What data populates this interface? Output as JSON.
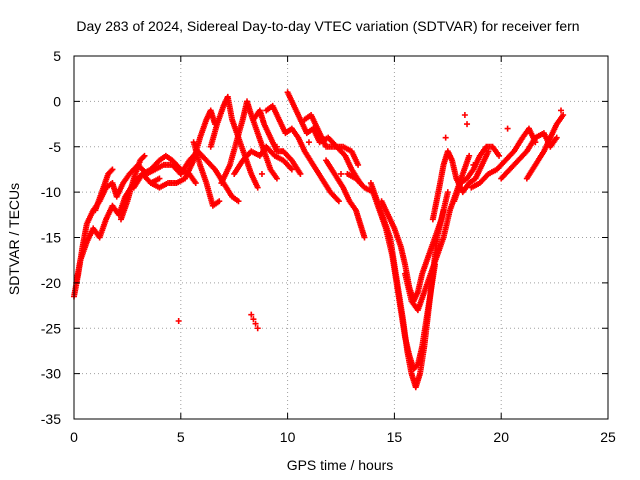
{
  "chart_data": {
    "type": "scatter",
    "title": "Day 283 of 2024, Sidereal Day-to-day VTEC variation (SDTVAR) for receiver fern",
    "xlabel": "GPS time / hours",
    "ylabel": "SDTVAR / TECUs",
    "xlim": [
      0,
      25
    ],
    "ylim": [
      -35,
      5
    ],
    "x_ticks": [
      0,
      5,
      10,
      15,
      20,
      25
    ],
    "y_ticks": [
      5,
      0,
      -5,
      -10,
      -15,
      -20,
      -25,
      -30,
      -35
    ],
    "grid": true,
    "marker": "+",
    "series_color": "#ff0000",
    "tracks": [
      {
        "name": "t1",
        "points": [
          [
            0.0,
            -21.5
          ],
          [
            0.2,
            -19
          ],
          [
            0.4,
            -16
          ],
          [
            0.6,
            -13.5
          ],
          [
            0.9,
            -12
          ],
          [
            1.2,
            -11
          ],
          [
            1.5,
            -9.5
          ],
          [
            1.8,
            -9
          ],
          [
            2.0,
            -10.5
          ],
          [
            2.3,
            -9
          ],
          [
            2.6,
            -8
          ],
          [
            3.0,
            -7
          ],
          [
            3.4,
            -8
          ],
          [
            3.8,
            -7.5
          ],
          [
            4.2,
            -7
          ],
          [
            4.6,
            -7
          ],
          [
            5.0,
            -8
          ]
        ]
      },
      {
        "name": "t2",
        "points": [
          [
            0.1,
            -20
          ],
          [
            0.3,
            -17.5
          ],
          [
            0.6,
            -15.5
          ],
          [
            0.9,
            -14
          ],
          [
            1.2,
            -15
          ],
          [
            1.5,
            -13
          ],
          [
            1.8,
            -11.5
          ],
          [
            2.1,
            -12.5
          ],
          [
            2.4,
            -10.5
          ],
          [
            2.8,
            -9
          ],
          [
            3.2,
            -8
          ],
          [
            3.6,
            -9
          ],
          [
            4.0,
            -8.5
          ]
        ]
      },
      {
        "name": "t3",
        "points": [
          [
            1.0,
            -12
          ],
          [
            1.3,
            -10
          ],
          [
            1.6,
            -8
          ],
          [
            1.8,
            -7.5
          ]
        ]
      },
      {
        "name": "t4",
        "points": [
          [
            2.2,
            -13
          ],
          [
            2.5,
            -11
          ],
          [
            2.8,
            -8.5
          ],
          [
            3.1,
            -6.5
          ],
          [
            3.3,
            -6
          ]
        ]
      },
      {
        "name": "t5",
        "points": [
          [
            2.8,
            -9.5
          ],
          [
            3.2,
            -8
          ],
          [
            3.6,
            -7.5
          ],
          [
            4.0,
            -6.5
          ],
          [
            4.3,
            -6
          ],
          [
            4.6,
            -6.5
          ],
          [
            5.0,
            -7.5
          ],
          [
            5.4,
            -8
          ],
          [
            5.7,
            -9
          ]
        ]
      },
      {
        "name": "t6",
        "points": [
          [
            3.6,
            -9
          ],
          [
            4.0,
            -9.5
          ],
          [
            4.4,
            -9
          ],
          [
            4.8,
            -9
          ],
          [
            5.2,
            -8.5
          ],
          [
            5.6,
            -6.5
          ],
          [
            5.9,
            -4
          ],
          [
            6.2,
            -2
          ],
          [
            6.4,
            -1
          ],
          [
            6.6,
            -2.5
          ]
        ]
      },
      {
        "name": "t7",
        "points": [
          [
            5.0,
            -8
          ],
          [
            5.4,
            -6.5
          ],
          [
            5.8,
            -5.5
          ],
          [
            6.2,
            -6.5
          ],
          [
            6.6,
            -7.5
          ],
          [
            7.0,
            -9
          ],
          [
            7.4,
            -10.5
          ],
          [
            7.7,
            -11
          ]
        ]
      },
      {
        "name": "t8",
        "points": [
          [
            5.6,
            -4.5
          ],
          [
            5.9,
            -7
          ],
          [
            6.2,
            -9
          ],
          [
            6.5,
            -11.5
          ],
          [
            6.8,
            -11
          ]
        ]
      },
      {
        "name": "t9",
        "points": [
          [
            6.4,
            -5
          ],
          [
            6.7,
            -2.5
          ],
          [
            7.0,
            -0.5
          ],
          [
            7.2,
            0.5
          ],
          [
            7.4,
            -2
          ],
          [
            7.7,
            -4
          ],
          [
            8.0,
            -6
          ],
          [
            8.3,
            -8
          ],
          [
            8.6,
            -9.5
          ]
        ]
      },
      {
        "name": "t10",
        "points": [
          [
            6.9,
            -9
          ],
          [
            7.3,
            -7
          ],
          [
            7.6,
            -4.5
          ],
          [
            7.9,
            -2
          ],
          [
            8.1,
            0
          ],
          [
            8.3,
            -1.5
          ],
          [
            8.6,
            -3.5
          ],
          [
            8.9,
            -5.5
          ],
          [
            9.2,
            -7.5
          ],
          [
            9.5,
            -8.5
          ]
        ]
      },
      {
        "name": "t11",
        "points": [
          [
            7.5,
            -8
          ],
          [
            7.9,
            -6.5
          ],
          [
            8.3,
            -5.5
          ],
          [
            8.7,
            -6
          ],
          [
            9.0,
            -5
          ],
          [
            9.4,
            -6
          ],
          [
            9.8,
            -6.5
          ],
          [
            10.2,
            -7.5
          ]
        ]
      },
      {
        "name": "t12",
        "points": [
          [
            8.4,
            -2
          ],
          [
            8.7,
            -1
          ],
          [
            8.9,
            -2.5
          ],
          [
            9.2,
            -4
          ],
          [
            9.5,
            -5.5
          ],
          [
            9.8,
            -5.5
          ],
          [
            10.2,
            -6.5
          ],
          [
            10.6,
            -8
          ]
        ]
      },
      {
        "name": "t13",
        "points": [
          [
            9.0,
            -1
          ],
          [
            9.3,
            -0.5
          ],
          [
            9.6,
            -2
          ],
          [
            9.9,
            -3.5
          ],
          [
            10.2,
            -3
          ],
          [
            10.5,
            -4
          ],
          [
            10.8,
            -5.5
          ],
          [
            11.2,
            -7
          ],
          [
            11.6,
            -8.5
          ],
          [
            12.0,
            -10
          ],
          [
            12.4,
            -11
          ]
        ]
      },
      {
        "name": "t14",
        "points": [
          [
            10.0,
            1
          ],
          [
            10.3,
            -0.5
          ],
          [
            10.6,
            -2
          ],
          [
            10.9,
            -3.5
          ],
          [
            11.2,
            -3
          ],
          [
            11.5,
            -4.5
          ],
          [
            11.9,
            -4
          ],
          [
            12.3,
            -5
          ],
          [
            12.7,
            -6
          ],
          [
            13.0,
            -7.5
          ],
          [
            13.4,
            -9
          ]
        ]
      },
      {
        "name": "t15",
        "points": [
          [
            10.8,
            -2
          ],
          [
            11.1,
            -1.5
          ],
          [
            11.4,
            -3
          ],
          [
            11.8,
            -5
          ],
          [
            12.2,
            -5
          ],
          [
            12.6,
            -5
          ],
          [
            13.0,
            -5.5
          ],
          [
            13.3,
            -7
          ]
        ]
      },
      {
        "name": "t16",
        "points": [
          [
            11.8,
            -6.5
          ],
          [
            12.2,
            -8
          ],
          [
            12.6,
            -9.5
          ],
          [
            12.9,
            -11
          ],
          [
            13.2,
            -12
          ],
          [
            13.4,
            -13.5
          ],
          [
            13.6,
            -15
          ]
        ]
      },
      {
        "name": "t17",
        "points": [
          [
            12.8,
            -8
          ],
          [
            13.2,
            -8.5
          ],
          [
            13.6,
            -9.5
          ],
          [
            14.0,
            -10
          ],
          [
            14.3,
            -12
          ],
          [
            14.6,
            -14
          ],
          [
            14.9,
            -17
          ],
          [
            15.1,
            -20
          ],
          [
            15.3,
            -23
          ],
          [
            15.5,
            -26
          ],
          [
            15.7,
            -28
          ],
          [
            15.9,
            -29.5
          ],
          [
            16.1,
            -29
          ],
          [
            16.3,
            -27
          ],
          [
            16.5,
            -24
          ],
          [
            16.7,
            -21
          ],
          [
            16.9,
            -18
          ]
        ]
      },
      {
        "name": "t18",
        "points": [
          [
            13.9,
            -9
          ],
          [
            14.2,
            -11
          ],
          [
            14.5,
            -13
          ],
          [
            14.8,
            -15
          ],
          [
            15.0,
            -18
          ],
          [
            15.2,
            -21
          ],
          [
            15.4,
            -24
          ],
          [
            15.6,
            -27.5
          ],
          [
            15.8,
            -30
          ],
          [
            16.0,
            -31.5
          ],
          [
            16.2,
            -30
          ],
          [
            16.4,
            -27
          ],
          [
            16.6,
            -23
          ],
          [
            16.8,
            -19
          ],
          [
            17.0,
            -15
          ],
          [
            17.3,
            -12
          ]
        ]
      },
      {
        "name": "t19",
        "points": [
          [
            14.4,
            -11
          ],
          [
            14.7,
            -12.5
          ],
          [
            15.0,
            -14
          ],
          [
            15.3,
            -16
          ],
          [
            15.5,
            -18
          ],
          [
            15.7,
            -20.5
          ],
          [
            15.9,
            -22
          ],
          [
            16.1,
            -21
          ],
          [
            16.3,
            -19
          ],
          [
            16.6,
            -17
          ],
          [
            16.9,
            -15
          ],
          [
            17.2,
            -13
          ],
          [
            17.5,
            -10
          ]
        ]
      },
      {
        "name": "t20",
        "points": [
          [
            15.5,
            -19
          ],
          [
            15.8,
            -22
          ],
          [
            16.1,
            -23
          ],
          [
            16.4,
            -21
          ],
          [
            16.7,
            -19
          ],
          [
            17.0,
            -17
          ],
          [
            17.3,
            -15
          ],
          [
            17.6,
            -12
          ],
          [
            17.9,
            -10
          ],
          [
            18.2,
            -8
          ],
          [
            18.5,
            -6
          ]
        ]
      },
      {
        "name": "t21",
        "points": [
          [
            16.8,
            -13
          ],
          [
            17.1,
            -9.5
          ],
          [
            17.3,
            -7
          ],
          [
            17.5,
            -5.5
          ],
          [
            17.7,
            -6.5
          ],
          [
            17.9,
            -8.5
          ],
          [
            18.2,
            -10
          ],
          [
            18.5,
            -9
          ],
          [
            18.8,
            -8.5
          ],
          [
            19.1,
            -7
          ],
          [
            19.4,
            -5.5
          ]
        ]
      },
      {
        "name": "t22",
        "points": [
          [
            17.8,
            -11
          ],
          [
            18.1,
            -9
          ],
          [
            18.4,
            -8.5
          ],
          [
            18.7,
            -7.5
          ],
          [
            19.0,
            -6
          ],
          [
            19.3,
            -5
          ],
          [
            19.6,
            -5
          ],
          [
            19.9,
            -6
          ]
        ]
      },
      {
        "name": "t23",
        "points": [
          [
            18.6,
            -9.5
          ],
          [
            19.0,
            -9
          ],
          [
            19.4,
            -8
          ],
          [
            19.8,
            -7.5
          ],
          [
            20.2,
            -6.5
          ],
          [
            20.6,
            -5.5
          ],
          [
            21.0,
            -4
          ],
          [
            21.3,
            -3
          ],
          [
            21.6,
            -4.5
          ]
        ]
      },
      {
        "name": "t24",
        "points": [
          [
            20.0,
            -8.5
          ],
          [
            20.4,
            -7.5
          ],
          [
            20.8,
            -6.5
          ],
          [
            21.2,
            -5.5
          ],
          [
            21.6,
            -4
          ],
          [
            22.0,
            -3.5
          ],
          [
            22.3,
            -5
          ],
          [
            22.6,
            -4
          ]
        ]
      },
      {
        "name": "t25",
        "points": [
          [
            21.2,
            -8.5
          ],
          [
            21.6,
            -7
          ],
          [
            22.0,
            -5.5
          ],
          [
            22.3,
            -4
          ],
          [
            22.6,
            -2.5
          ],
          [
            22.9,
            -1.5
          ]
        ]
      },
      {
        "name": "t26",
        "points": [
          [
            4.9,
            -24.2
          ],
          [
            8.3,
            -23.5
          ],
          [
            8.4,
            -24
          ],
          [
            8.5,
            -24.5
          ],
          [
            8.6,
            -25
          ]
        ]
      },
      {
        "name": "t27",
        "points": [
          [
            18.3,
            -1.5
          ],
          [
            18.4,
            -2.5
          ],
          [
            18.7,
            -7
          ],
          [
            17.4,
            -4
          ],
          [
            20.3,
            -3
          ],
          [
            22.8,
            -1
          ],
          [
            9.5,
            -5
          ],
          [
            8.8,
            -8
          ],
          [
            11.0,
            -4.5
          ],
          [
            12.5,
            -8
          ]
        ]
      }
    ]
  }
}
